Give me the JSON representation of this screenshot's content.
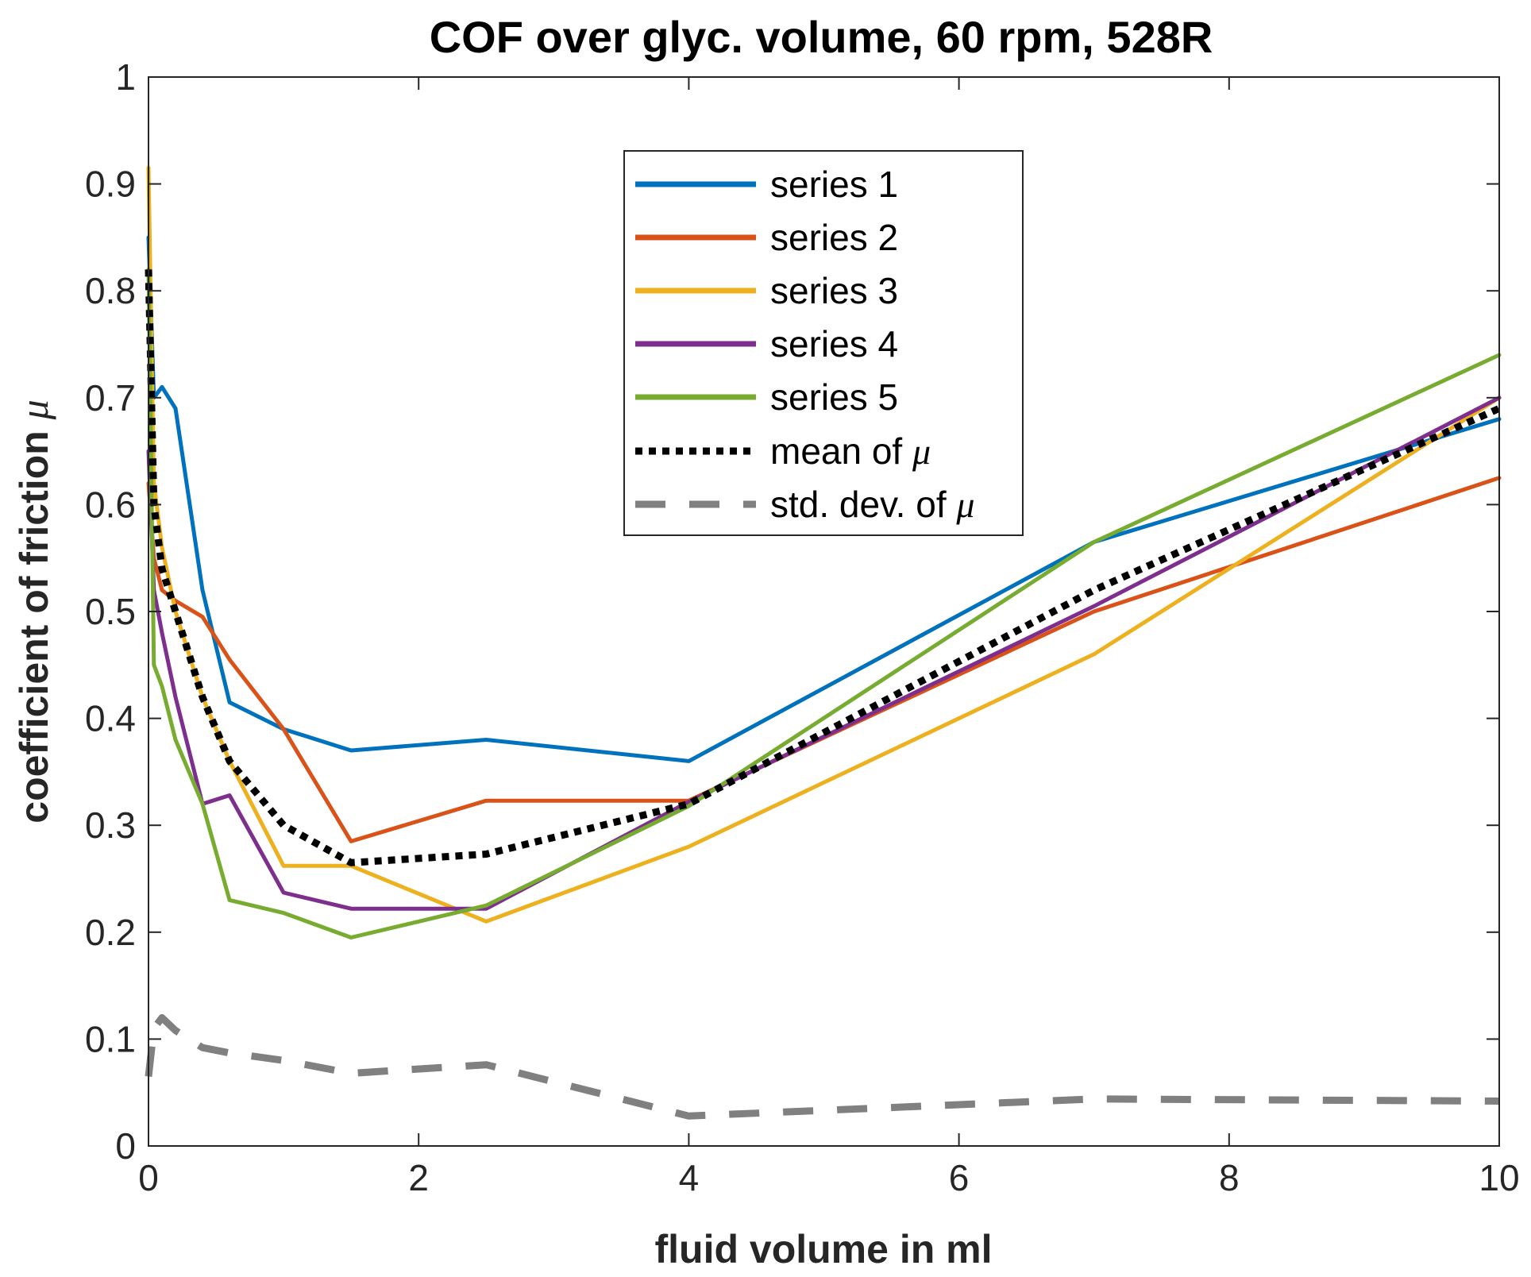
{
  "chart_data": {
    "type": "line",
    "title": "COF over glyc. volume, 60 rpm, 528R",
    "xlabel": "fluid volume in ml",
    "ylabel_text": "coefficient of friction ",
    "ylabel_symbol": "μ",
    "xlim": [
      0,
      10
    ],
    "ylim": [
      0,
      1
    ],
    "xticks": [
      0,
      2,
      4,
      6,
      8,
      10
    ],
    "yticks": [
      0,
      0.1,
      0.2,
      0.3,
      0.4,
      0.5,
      0.6,
      0.7,
      0.8,
      0.9,
      1
    ],
    "xtick_labels": [
      "0",
      "2",
      "4",
      "6",
      "8",
      "10"
    ],
    "ytick_labels": [
      "0",
      "0.1",
      "0.2",
      "0.3",
      "0.4",
      "0.5",
      "0.6",
      "0.7",
      "0.8",
      "0.9",
      "1"
    ],
    "grid": false,
    "legend_position": "top-center",
    "series": [
      {
        "name": "series 1",
        "label": "series 1",
        "color": "#0072BD",
        "style": "solid",
        "x": [
          0,
          0.04,
          0.1,
          0.2,
          0.4,
          0.6,
          1.0,
          1.5,
          2.5,
          4.0,
          7.0,
          10.0
        ],
        "y": [
          0.85,
          0.7,
          0.71,
          0.69,
          0.52,
          0.415,
          0.39,
          0.37,
          0.38,
          0.36,
          0.565,
          0.68
        ]
      },
      {
        "name": "series 2",
        "label": "series 2",
        "color": "#D95319",
        "style": "solid",
        "x": [
          0,
          0.04,
          0.1,
          0.2,
          0.4,
          0.6,
          1.0,
          1.5,
          2.5,
          4.0,
          7.0,
          10.0
        ],
        "y": [
          0.62,
          0.55,
          0.52,
          0.51,
          0.495,
          0.455,
          0.39,
          0.285,
          0.323,
          0.323,
          0.5,
          0.625
        ]
      },
      {
        "name": "series 3",
        "label": "series 3",
        "color": "#EDB120",
        "style": "solid",
        "x": [
          0,
          0.04,
          0.1,
          0.2,
          0.4,
          0.6,
          1.0,
          1.5,
          2.5,
          4.0,
          7.0,
          10.0
        ],
        "y": [
          0.915,
          0.62,
          0.56,
          0.5,
          0.42,
          0.36,
          0.262,
          0.262,
          0.21,
          0.28,
          0.46,
          0.7
        ]
      },
      {
        "name": "series 4",
        "label": "series 4",
        "color": "#7E2F8E",
        "style": "solid",
        "x": [
          0,
          0.04,
          0.1,
          0.2,
          0.4,
          0.6,
          1.0,
          1.5,
          2.5,
          4.0,
          7.0,
          10.0
        ],
        "y": [
          0.65,
          0.52,
          0.48,
          0.42,
          0.32,
          0.328,
          0.237,
          0.222,
          0.222,
          0.322,
          0.505,
          0.7
        ]
      },
      {
        "name": "series 5",
        "label": "series 5",
        "color": "#77AC30",
        "style": "solid",
        "x": [
          0,
          0.04,
          0.1,
          0.2,
          0.4,
          0.6,
          1.0,
          1.5,
          2.5,
          4.0,
          7.0,
          10.0
        ],
        "y": [
          0.82,
          0.45,
          0.43,
          0.38,
          0.32,
          0.23,
          0.218,
          0.195,
          0.225,
          0.318,
          0.565,
          0.74
        ]
      },
      {
        "name": "mean of μ",
        "label_text": "mean of ",
        "label_symbol": "μ",
        "color": "#000000",
        "style": "dotted",
        "x": [
          0,
          0.04,
          0.1,
          0.2,
          0.4,
          0.6,
          1.0,
          1.5,
          2.5,
          4.0,
          7.0,
          10.0
        ],
        "y": [
          0.82,
          0.6,
          0.54,
          0.5,
          0.42,
          0.36,
          0.3,
          0.265,
          0.273,
          0.32,
          0.52,
          0.69
        ]
      },
      {
        "name": "std. dev. of μ",
        "label_text": "std. dev. of ",
        "label_symbol": "μ",
        "color": "#808080",
        "style": "dashed",
        "x": [
          0,
          0.04,
          0.1,
          0.2,
          0.4,
          0.6,
          1.0,
          1.5,
          2.5,
          4.0,
          7.0,
          10.0
        ],
        "y": [
          0.065,
          0.11,
          0.12,
          0.108,
          0.092,
          0.087,
          0.08,
          0.068,
          0.076,
          0.028,
          0.044,
          0.042
        ]
      }
    ]
  }
}
